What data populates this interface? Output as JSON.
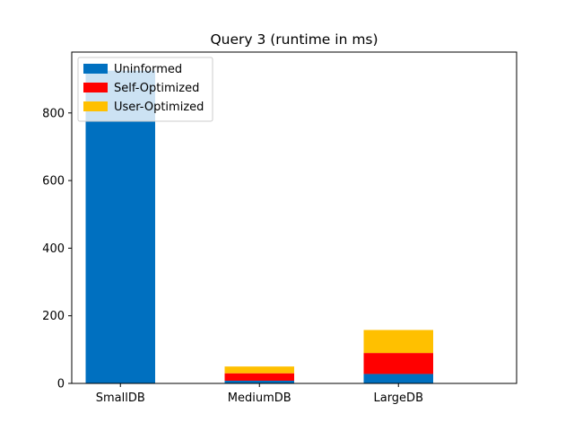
{
  "chart_data": {
    "type": "bar",
    "stacked": true,
    "title": "Query 3 (runtime in ms)",
    "xlabel": "",
    "ylabel": "",
    "categories": [
      "SmallDB",
      "MediumDB",
      "LargeDB"
    ],
    "series": [
      {
        "name": "Uninformed",
        "color": "#0070c0",
        "values": [
          925,
          8,
          28
        ]
      },
      {
        "name": "Self-Optimized",
        "color": "#ff0000",
        "values": [
          0,
          22,
          62
        ]
      },
      {
        "name": "User-Optimized",
        "color": "#ffc000",
        "values": [
          0,
          20,
          68
        ]
      }
    ],
    "ylim": [
      0,
      980
    ],
    "yticks": [
      0,
      200,
      400,
      600,
      800
    ],
    "grid": false,
    "legend_position": "top-left"
  }
}
